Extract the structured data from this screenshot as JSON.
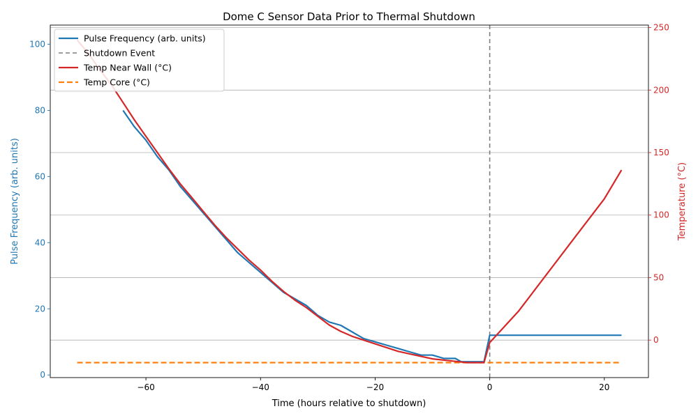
{
  "chart_data": {
    "type": "line",
    "title": "Dome C Sensor Data Prior to Thermal Shutdown",
    "xlabel": "Time (hours relative to shutdown)",
    "ylabel_left": "Pulse Frequency (arb. units)",
    "ylabel_right": "Temperature (°C)",
    "xlim": [
      -76.7,
      27.7
    ],
    "ylim_left": [
      -0.8,
      105.8
    ],
    "ylim_right": [
      -30,
      252
    ],
    "x_ticks": [
      -60,
      -40,
      -20,
      0,
      20
    ],
    "x_tick_labels": [
      "−60",
      "−40",
      "−20",
      "0",
      "20"
    ],
    "y_left_ticks": [
      0,
      20,
      40,
      60,
      80,
      100
    ],
    "y_left_tick_labels": [
      "0",
      "20",
      "40",
      "60",
      "80",
      "100"
    ],
    "y_right_ticks": [
      0,
      50,
      100,
      150,
      200,
      250
    ],
    "y_right_tick_labels": [
      "0",
      "50",
      "100",
      "150",
      "200",
      "250"
    ],
    "grid": "horizontal, right axis",
    "legend_position": "upper-left",
    "legend": [
      "Pulse Frequency (arb. units)",
      "Shutdown Event",
      "Temp Near Wall (°C)",
      "Temp Core (°C)"
    ],
    "colors": {
      "pulse": "#1f77b4",
      "shutdown": "#7f7f7f",
      "temp_wall": "#d62728",
      "temp_core": "#ff7f0e",
      "left_axis": "#1f77b4",
      "right_axis": "#d62728"
    },
    "shutdown_x": 0,
    "series": [
      {
        "name": "Pulse Frequency (arb. units)",
        "axis": "left",
        "style": "solid",
        "x": [
          -64,
          -62,
          -60,
          -58,
          -56,
          -54,
          -52,
          -50,
          -48,
          -46,
          -44,
          -42,
          -40,
          -38,
          -36,
          -34,
          -32,
          -30,
          -28,
          -26,
          -24,
          -22,
          -20,
          -18,
          -16,
          -14,
          -12,
          -10,
          -8,
          -6,
          -5,
          -4,
          -3,
          -2,
          -1,
          0,
          2,
          5,
          10,
          15,
          20,
          23
        ],
        "y": [
          80,
          75,
          71,
          66,
          62,
          57,
          53,
          49,
          45,
          41,
          37,
          34,
          31,
          28,
          25,
          23,
          21,
          18,
          16,
          15,
          13,
          11,
          10,
          9,
          8,
          7,
          6,
          6,
          5,
          5,
          4,
          4,
          4,
          4,
          4,
          12,
          12,
          12,
          12,
          12,
          12,
          12
        ]
      },
      {
        "name": "Temp Near Wall (°C)",
        "axis": "right",
        "style": "solid",
        "x": [
          -72,
          -70,
          -68,
          -66,
          -64,
          -62,
          -60,
          -58,
          -56,
          -54,
          -52,
          -50,
          -48,
          -46,
          -44,
          -42,
          -40,
          -38,
          -36,
          -34,
          -32,
          -30,
          -28,
          -26,
          -24,
          -22,
          -20,
          -18,
          -16,
          -14,
          -12,
          -10,
          -8,
          -6,
          -4,
          -3,
          -2,
          -1,
          0,
          5,
          10,
          15,
          20,
          23
        ],
        "y": [
          240,
          229,
          216,
          204,
          190,
          176,
          163,
          150,
          137,
          125,
          114,
          103,
          92,
          82,
          73,
          64,
          56,
          47,
          39,
          32,
          26,
          19,
          12,
          7,
          3,
          0,
          -3,
          -6,
          -9,
          -11,
          -13,
          -15,
          -16,
          -17,
          -18,
          -18,
          -18,
          -18,
          -2,
          23,
          53,
          83,
          113,
          136
        ]
      },
      {
        "name": "Temp Core (°C)",
        "axis": "right",
        "style": "dashed",
        "x": [
          -72,
          23
        ],
        "y": [
          -18,
          -18
        ]
      }
    ]
  }
}
